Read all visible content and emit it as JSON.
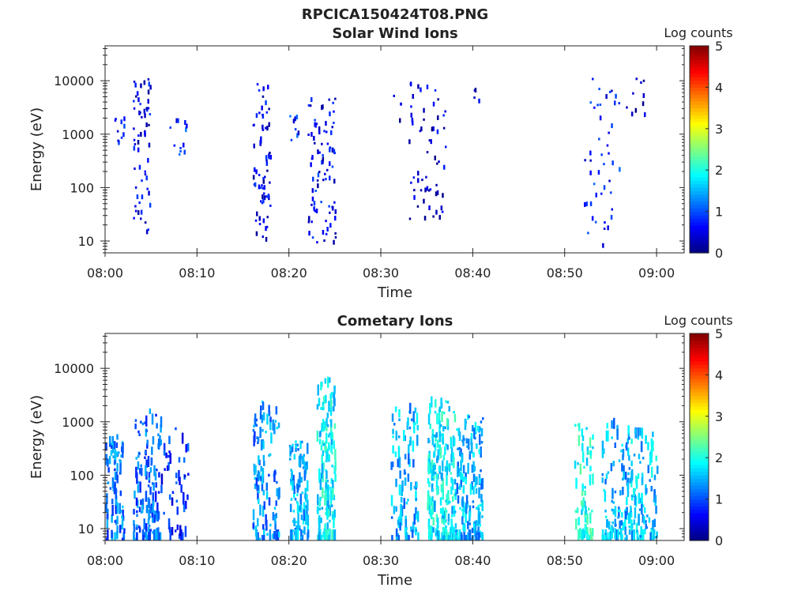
{
  "figure": {
    "title": "RPCICA150424T08.PNG"
  },
  "chart_data": [
    {
      "type": "heatmap",
      "title": "Solar Wind Ions",
      "xlabel": "Time",
      "ylabel": "Energy (eV)",
      "x_range": [
        "08:00",
        "09:03"
      ],
      "x_ticks": [
        "08:00",
        "08:10",
        "08:20",
        "08:30",
        "08:40",
        "08:50",
        "09:00"
      ],
      "y_scale": "log",
      "y_range": [
        6,
        45000
      ],
      "y_ticks": [
        "10",
        "100",
        "1000",
        "10000"
      ],
      "colorbar": {
        "label": "Log counts",
        "range": [
          0,
          5
        ],
        "ticks": [
          "0",
          "1",
          "2",
          "3",
          "4",
          "5"
        ],
        "colormap": "jet"
      },
      "grid": false,
      "clusters": [
        {
          "t_start": "08:01",
          "t_end": "08:02",
          "e_min": 700,
          "e_max": 2200,
          "n": 10,
          "level": 0.6
        },
        {
          "t_start": "08:03",
          "t_end": "08:05",
          "e_min": 15,
          "e_max": 12000,
          "n": 60,
          "level": 0.5
        },
        {
          "t_start": "08:06",
          "t_end": "08:09",
          "e_min": 400,
          "e_max": 3500,
          "n": 12,
          "level": 0.8
        },
        {
          "t_start": "08:16",
          "t_end": "08:18",
          "e_min": 10,
          "e_max": 12000,
          "n": 70,
          "level": 0.5
        },
        {
          "t_start": "08:20",
          "t_end": "08:21",
          "e_min": 700,
          "e_max": 2500,
          "n": 8,
          "level": 0.8
        },
        {
          "t_start": "08:22",
          "t_end": "08:25",
          "e_min": 8,
          "e_max": 5000,
          "n": 90,
          "level": 0.6
        },
        {
          "t_start": "08:31",
          "t_end": "08:33",
          "e_min": 1500,
          "e_max": 6000,
          "n": 4,
          "level": 0.3
        },
        {
          "t_start": "08:33",
          "t_end": "08:37",
          "e_min": 25,
          "e_max": 12000,
          "n": 60,
          "level": 0.4
        },
        {
          "t_start": "08:40",
          "t_end": "08:41",
          "e_min": 1500,
          "e_max": 10000,
          "n": 4,
          "level": 0.3
        },
        {
          "t_start": "08:52",
          "t_end": "08:56",
          "e_min": 8,
          "e_max": 12000,
          "n": 45,
          "level": 0.7
        },
        {
          "t_start": "08:56",
          "t_end": "08:59",
          "e_min": 400,
          "e_max": 15000,
          "n": 10,
          "level": 0.3
        }
      ]
    },
    {
      "type": "heatmap",
      "title": "Cometary Ions",
      "xlabel": "Time",
      "ylabel": "Energy (eV)",
      "x_range": [
        "08:00",
        "09:03"
      ],
      "x_ticks": [
        "08:00",
        "08:10",
        "08:20",
        "08:30",
        "08:40",
        "08:50",
        "09:00"
      ],
      "y_scale": "log",
      "y_range": [
        6,
        45000
      ],
      "y_ticks": [
        "10",
        "100",
        "1000",
        "10000"
      ],
      "colorbar": {
        "label": "Log counts",
        "range": [
          0,
          5
        ],
        "ticks": [
          "0",
          "1",
          "2",
          "3",
          "4",
          "5"
        ],
        "colormap": "jet"
      },
      "grid": false,
      "clusters": [
        {
          "t_start": "08:00",
          "t_end": "08:02",
          "e_min": 6,
          "e_max": 600,
          "n": 90,
          "level": 1.2
        },
        {
          "t_start": "08:03",
          "t_end": "08:06",
          "e_min": 6,
          "e_max": 1800,
          "n": 130,
          "level": 1.1
        },
        {
          "t_start": "08:06",
          "t_end": "08:09",
          "e_min": 8,
          "e_max": 800,
          "n": 50,
          "level": 0.8
        },
        {
          "t_start": "08:16",
          "t_end": "08:19",
          "e_min": 6,
          "e_max": 2500,
          "n": 110,
          "level": 1.3
        },
        {
          "t_start": "08:20",
          "t_end": "08:22",
          "e_min": 6,
          "e_max": 500,
          "n": 110,
          "level": 1.5
        },
        {
          "t_start": "08:23",
          "t_end": "08:25",
          "e_min": 6,
          "e_max": 7000,
          "n": 170,
          "level": 1.8
        },
        {
          "t_start": "08:31",
          "t_end": "08:34",
          "e_min": 6,
          "e_max": 2500,
          "n": 100,
          "level": 1.5
        },
        {
          "t_start": "08:35",
          "t_end": "08:38",
          "e_min": 6,
          "e_max": 3000,
          "n": 210,
          "level": 1.8
        },
        {
          "t_start": "08:38",
          "t_end": "08:41",
          "e_min": 6,
          "e_max": 1500,
          "n": 160,
          "level": 1.5
        },
        {
          "t_start": "08:51",
          "t_end": "08:53",
          "e_min": 6,
          "e_max": 1000,
          "n": 70,
          "level": 2.0
        },
        {
          "t_start": "08:54",
          "t_end": "08:57",
          "e_min": 6,
          "e_max": 1200,
          "n": 110,
          "level": 1.5
        },
        {
          "t_start": "08:57",
          "t_end": "09:00",
          "e_min": 6,
          "e_max": 800,
          "n": 110,
          "level": 1.6
        }
      ]
    }
  ]
}
